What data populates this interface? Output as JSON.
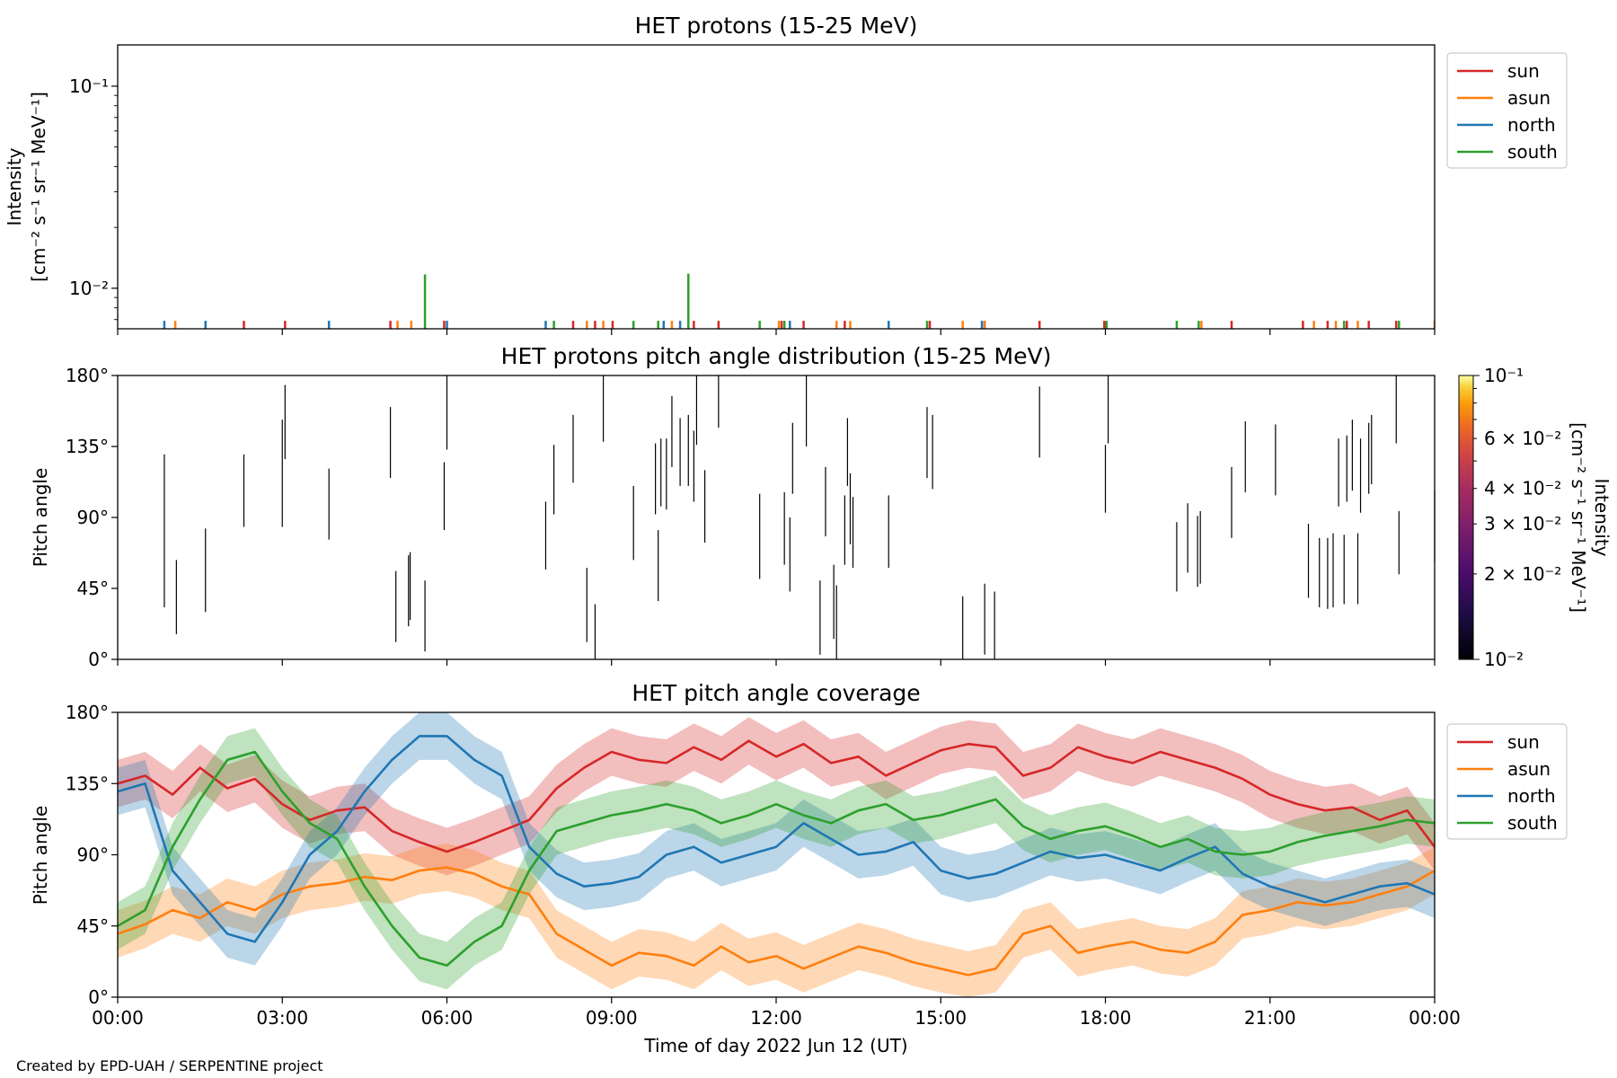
{
  "credit": "Created by EPD-UAH / SERPENTINE project",
  "colors": {
    "sun": "#d62728",
    "asun": "#ff7f0e",
    "north": "#1f77b4",
    "south": "#2ca02c"
  },
  "x_axis": {
    "label": "Time of day 2022 Jun 12 (UT)",
    "range_hours": [
      0,
      24
    ],
    "tick_hours": [
      0,
      3,
      6,
      9,
      12,
      15,
      18,
      21,
      24
    ],
    "tick_labels": [
      "00:00",
      "03:00",
      "06:00",
      "09:00",
      "12:00",
      "15:00",
      "18:00",
      "21:00",
      "00:00"
    ]
  },
  "chart_data": [
    {
      "type": "line",
      "title": "HET protons (15-25 MeV)",
      "ylabel_line1": "Intensity",
      "ylabel_line2": "[cm⁻² s⁻¹ sr⁻¹ MeV⁻¹]",
      "yscale": "log",
      "ylim": [
        0.0063,
        0.16
      ],
      "ytick_values": [
        0.01,
        0.1
      ],
      "ytick_labels": [
        "10⁻²",
        "10⁻¹"
      ],
      "legend": [
        "sun",
        "asun",
        "north",
        "south"
      ],
      "legend_position": "outside upper right",
      "baseline": 0.0063,
      "series": [
        {
          "name": "sun",
          "x_hours": [
            2.3,
            3.05,
            4.97,
            5.95,
            8.3,
            8.7,
            9.02,
            10.5,
            10.95,
            12.1,
            12.5,
            13.25,
            14.8,
            15.8,
            16.8,
            17.98,
            20.3,
            21.6,
            22.05,
            22.4,
            22.8,
            23.3
          ],
          "values": [
            0.0069,
            0.0069,
            0.0069,
            0.0069,
            0.0069,
            0.0069,
            0.0069,
            0.0069,
            0.0069,
            0.0069,
            0.0069,
            0.0069,
            0.0069,
            0.0069,
            0.0069,
            0.0069,
            0.0069,
            0.0069,
            0.0069,
            0.0069,
            0.0069,
            0.0069
          ]
        },
        {
          "name": "asun",
          "x_hours": [
            1.05,
            5.1,
            5.35,
            8.55,
            8.85,
            10.1,
            12.05,
            13.1,
            13.35,
            15.4,
            15.8,
            19.75,
            21.8,
            22.2,
            22.6,
            24.0
          ],
          "values": [
            0.0069,
            0.0069,
            0.0069,
            0.0069,
            0.0069,
            0.0069,
            0.0069,
            0.0069,
            0.0069,
            0.0069,
            0.0069,
            0.0069,
            0.0069,
            0.0069,
            0.0069,
            0.0069
          ]
        },
        {
          "name": "north",
          "x_hours": [
            0.85,
            1.6,
            3.85,
            6.0,
            7.8,
            9.95,
            10.25,
            12.25,
            14.05,
            15.75
          ],
          "values": [
            0.0069,
            0.0069,
            0.0069,
            0.0069,
            0.0069,
            0.0069,
            0.0069,
            0.0069,
            0.0069,
            0.0069
          ]
        },
        {
          "name": "south",
          "x_hours": [
            5.6,
            7.95,
            9.4,
            9.85,
            10.4,
            11.7,
            12.15,
            14.75,
            18.02,
            19.3,
            19.7,
            22.35,
            23.35
          ],
          "values": [
            0.0117,
            0.0069,
            0.0069,
            0.0069,
            0.0118,
            0.0069,
            0.0069,
            0.0069,
            0.0069,
            0.0069,
            0.0069,
            0.0069,
            0.0069
          ]
        }
      ]
    },
    {
      "type": "heatmap",
      "title": "HET protons pitch angle distribution (15-25 MeV)",
      "ylabel": "Pitch angle",
      "ylim": [
        0,
        180
      ],
      "ytick_values": [
        0,
        45,
        90,
        135,
        180
      ],
      "ytick_labels": [
        "0°",
        "45°",
        "90°",
        "135°",
        "180°"
      ],
      "colorbar": {
        "label_line1": "Intensity",
        "label_line2": "[cm⁻² s⁻¹ sr⁻¹ MeV⁻¹]",
        "scale": "log",
        "range": [
          0.01,
          0.1
        ],
        "tick_values": [
          0.01,
          0.02,
          0.03,
          0.04,
          0.06,
          0.1
        ],
        "tick_labels": [
          "10⁻²",
          "2 × 10⁻²",
          "3 × 10⁻²",
          "4 × 10⁻²",
          "6 × 10⁻²",
          "10⁻¹"
        ]
      },
      "segments": [
        {
          "t": 0.85,
          "y0": 33,
          "y1": 130
        },
        {
          "t": 1.07,
          "y0": 16,
          "y1": 63
        },
        {
          "t": 1.6,
          "y0": 30,
          "y1": 83
        },
        {
          "t": 2.3,
          "y0": 84,
          "y1": 130
        },
        {
          "t": 3.0,
          "y0": 84,
          "y1": 152
        },
        {
          "t": 3.05,
          "y0": 127,
          "y1": 174
        },
        {
          "t": 3.85,
          "y0": 76,
          "y1": 121
        },
        {
          "t": 4.97,
          "y0": 115,
          "y1": 160
        },
        {
          "t": 5.07,
          "y0": 11,
          "y1": 56
        },
        {
          "t": 5.3,
          "y0": 21,
          "y1": 66
        },
        {
          "t": 5.33,
          "y0": 25,
          "y1": 68
        },
        {
          "t": 5.6,
          "y0": 5,
          "y1": 50
        },
        {
          "t": 5.95,
          "y0": 82,
          "y1": 125
        },
        {
          "t": 6.0,
          "y0": 133,
          "y1": 180
        },
        {
          "t": 7.8,
          "y0": 57,
          "y1": 100
        },
        {
          "t": 7.95,
          "y0": 92,
          "y1": 136
        },
        {
          "t": 8.3,
          "y0": 112,
          "y1": 155
        },
        {
          "t": 8.55,
          "y0": 11,
          "y1": 58
        },
        {
          "t": 8.7,
          "y0": 0,
          "y1": 35
        },
        {
          "t": 8.85,
          "y0": 138,
          "y1": 180
        },
        {
          "t": 9.4,
          "y0": 63,
          "y1": 110
        },
        {
          "t": 9.8,
          "y0": 92,
          "y1": 137
        },
        {
          "t": 9.85,
          "y0": 37,
          "y1": 82
        },
        {
          "t": 9.9,
          "y0": 97,
          "y1": 140
        },
        {
          "t": 10.0,
          "y0": 95,
          "y1": 140
        },
        {
          "t": 10.1,
          "y0": 122,
          "y1": 167
        },
        {
          "t": 10.25,
          "y0": 110,
          "y1": 153
        },
        {
          "t": 10.4,
          "y0": 110,
          "y1": 155
        },
        {
          "t": 10.5,
          "y0": 100,
          "y1": 145
        },
        {
          "t": 10.55,
          "y0": 136,
          "y1": 180
        },
        {
          "t": 10.7,
          "y0": 74,
          "y1": 120
        },
        {
          "t": 10.95,
          "y0": 147,
          "y1": 180
        },
        {
          "t": 11.7,
          "y0": 51,
          "y1": 105
        },
        {
          "t": 12.15,
          "y0": 60,
          "y1": 106
        },
        {
          "t": 12.25,
          "y0": 43,
          "y1": 90
        },
        {
          "t": 12.3,
          "y0": 105,
          "y1": 150
        },
        {
          "t": 12.55,
          "y0": 135,
          "y1": 180
        },
        {
          "t": 12.8,
          "y0": 3,
          "y1": 50
        },
        {
          "t": 12.9,
          "y0": 78,
          "y1": 122
        },
        {
          "t": 13.05,
          "y0": 13,
          "y1": 60
        },
        {
          "t": 13.1,
          "y0": 0,
          "y1": 47
        },
        {
          "t": 13.25,
          "y0": 60,
          "y1": 104
        },
        {
          "t": 13.3,
          "y0": 110,
          "y1": 153
        },
        {
          "t": 13.35,
          "y0": 73,
          "y1": 118
        },
        {
          "t": 13.4,
          "y0": 58,
          "y1": 103
        },
        {
          "t": 14.05,
          "y0": 58,
          "y1": 104
        },
        {
          "t": 14.75,
          "y0": 115,
          "y1": 160
        },
        {
          "t": 14.85,
          "y0": 108,
          "y1": 155
        },
        {
          "t": 15.4,
          "y0": 0,
          "y1": 40
        },
        {
          "t": 15.8,
          "y0": 3,
          "y1": 48
        },
        {
          "t": 15.98,
          "y0": 0,
          "y1": 43
        },
        {
          "t": 16.8,
          "y0": 128,
          "y1": 173
        },
        {
          "t": 18.0,
          "y0": 93,
          "y1": 136
        },
        {
          "t": 18.05,
          "y0": 137,
          "y1": 180
        },
        {
          "t": 19.3,
          "y0": 43,
          "y1": 87
        },
        {
          "t": 19.5,
          "y0": 55,
          "y1": 99
        },
        {
          "t": 19.68,
          "y0": 46,
          "y1": 91
        },
        {
          "t": 19.73,
          "y0": 48,
          "y1": 94
        },
        {
          "t": 20.3,
          "y0": 77,
          "y1": 122
        },
        {
          "t": 20.55,
          "y0": 106,
          "y1": 151
        },
        {
          "t": 21.1,
          "y0": 104,
          "y1": 149
        },
        {
          "t": 21.7,
          "y0": 39,
          "y1": 86
        },
        {
          "t": 21.9,
          "y0": 33,
          "y1": 77
        },
        {
          "t": 22.05,
          "y0": 32,
          "y1": 77
        },
        {
          "t": 22.15,
          "y0": 33,
          "y1": 80
        },
        {
          "t": 22.25,
          "y0": 97,
          "y1": 140
        },
        {
          "t": 22.35,
          "y0": 35,
          "y1": 79
        },
        {
          "t": 22.4,
          "y0": 100,
          "y1": 142
        },
        {
          "t": 22.5,
          "y0": 107,
          "y1": 152
        },
        {
          "t": 22.6,
          "y0": 35,
          "y1": 80
        },
        {
          "t": 22.65,
          "y0": 93,
          "y1": 140
        },
        {
          "t": 22.8,
          "y0": 105,
          "y1": 150
        },
        {
          "t": 22.85,
          "y0": 111,
          "y1": 155
        },
        {
          "t": 23.35,
          "y0": 54,
          "y1": 94
        },
        {
          "t": 23.3,
          "y0": 137,
          "y1": 180
        },
        {
          "t": 24.0,
          "y0": 62,
          "y1": 107
        }
      ]
    },
    {
      "type": "line",
      "title": "HET pitch angle coverage",
      "ylabel": "Pitch angle",
      "ylim": [
        0,
        180
      ],
      "ytick_values": [
        0,
        45,
        90,
        135,
        180
      ],
      "ytick_labels": [
        "0°",
        "45°",
        "90°",
        "135°",
        "180°"
      ],
      "legend": [
        "sun",
        "asun",
        "north",
        "south"
      ],
      "legend_position": "outside upper right",
      "band_half_width_deg": 15,
      "x_hours": [
        0,
        0.5,
        1,
        1.5,
        2,
        2.5,
        3,
        3.5,
        4,
        4.5,
        5,
        5.5,
        6,
        6.5,
        7,
        7.5,
        8,
        8.5,
        9,
        9.5,
        10,
        10.5,
        11,
        11.5,
        12,
        12.5,
        13,
        13.5,
        14,
        14.5,
        15,
        15.5,
        16,
        16.5,
        17,
        17.5,
        18,
        18.5,
        19,
        19.5,
        20,
        20.5,
        21,
        21.5,
        22,
        22.5,
        23,
        23.5,
        24
      ],
      "series": [
        {
          "name": "sun",
          "values": [
            135,
            140,
            128,
            145,
            132,
            138,
            122,
            112,
            118,
            120,
            105,
            98,
            92,
            98,
            105,
            112,
            132,
            145,
            155,
            150,
            148,
            158,
            150,
            162,
            152,
            160,
            148,
            152,
            140,
            148,
            156,
            160,
            158,
            140,
            145,
            158,
            152,
            148,
            155,
            150,
            145,
            138,
            128,
            122,
            118,
            120,
            112,
            118,
            95
          ]
        },
        {
          "name": "asun",
          "values": [
            40,
            46,
            55,
            50,
            60,
            55,
            65,
            70,
            72,
            76,
            74,
            80,
            82,
            78,
            70,
            65,
            40,
            30,
            20,
            28,
            26,
            20,
            32,
            22,
            26,
            18,
            25,
            32,
            28,
            22,
            18,
            14,
            18,
            40,
            45,
            28,
            32,
            35,
            30,
            28,
            35,
            52,
            55,
            60,
            58,
            60,
            65,
            70,
            80
          ]
        },
        {
          "name": "north",
          "values": [
            130,
            135,
            80,
            60,
            40,
            35,
            60,
            90,
            105,
            130,
            150,
            165,
            165,
            150,
            140,
            95,
            78,
            70,
            72,
            76,
            90,
            95,
            85,
            90,
            95,
            110,
            100,
            90,
            92,
            98,
            80,
            75,
            78,
            85,
            92,
            88,
            90,
            85,
            80,
            88,
            95,
            78,
            70,
            65,
            60,
            65,
            70,
            72,
            65
          ]
        },
        {
          "name": "south",
          "values": [
            45,
            55,
            95,
            125,
            150,
            155,
            130,
            110,
            100,
            70,
            45,
            25,
            20,
            35,
            45,
            80,
            105,
            110,
            115,
            118,
            122,
            118,
            110,
            115,
            122,
            115,
            110,
            118,
            122,
            112,
            115,
            120,
            125,
            108,
            100,
            105,
            108,
            102,
            95,
            100,
            92,
            90,
            92,
            98,
            102,
            105,
            108,
            112,
            110
          ]
        }
      ]
    }
  ]
}
